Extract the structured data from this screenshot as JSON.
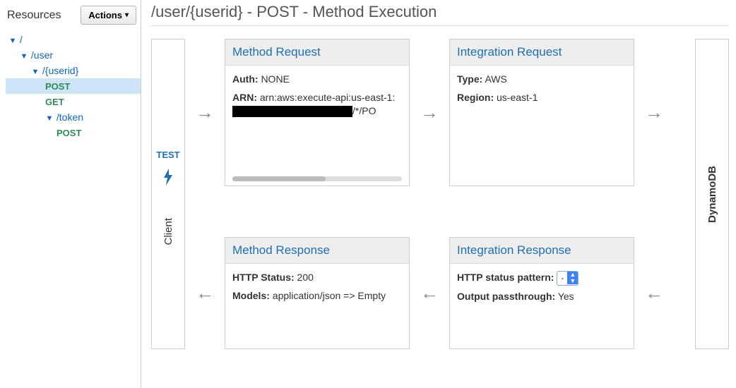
{
  "sidebar": {
    "title": "Resources",
    "actions_label": "Actions",
    "tree": [
      {
        "label": "/",
        "level": 0,
        "expandable": true
      },
      {
        "label": "/user",
        "level": 1,
        "expandable": true
      },
      {
        "label": "/{userid}",
        "level": 2,
        "expandable": true
      },
      {
        "label": "POST",
        "level": 3,
        "method": true,
        "selected": true
      },
      {
        "label": "GET",
        "level": 3,
        "method": true
      },
      {
        "label": "/token",
        "level": 3,
        "expandable": true
      },
      {
        "label": "POST",
        "level": 4,
        "method": true
      }
    ]
  },
  "page": {
    "title": "/user/{userid} - POST - Method Execution"
  },
  "client": {
    "test_label": "TEST",
    "label": "Client"
  },
  "service": {
    "label": "DynamoDB"
  },
  "cards": {
    "method_request": {
      "title": "Method Request",
      "auth_label": "Auth:",
      "auth_value": "NONE",
      "arn_label": "ARN:",
      "arn_value_prefix": "arn:aws:execute-api:us-east-1:",
      "arn_value_suffix": "/*/PO"
    },
    "integration_request": {
      "title": "Integration Request",
      "type_label": "Type:",
      "type_value": "AWS",
      "region_label": "Region:",
      "region_value": "us-east-1"
    },
    "method_response": {
      "title": "Method Response",
      "status_label": "HTTP Status:",
      "status_value": "200",
      "models_label": "Models:",
      "models_value": "application/json => Empty"
    },
    "integration_response": {
      "title": "Integration Response",
      "pattern_label": "HTTP status pattern:",
      "pattern_value": "-",
      "passthrough_label": "Output passthrough:",
      "passthrough_value": "Yes"
    }
  }
}
